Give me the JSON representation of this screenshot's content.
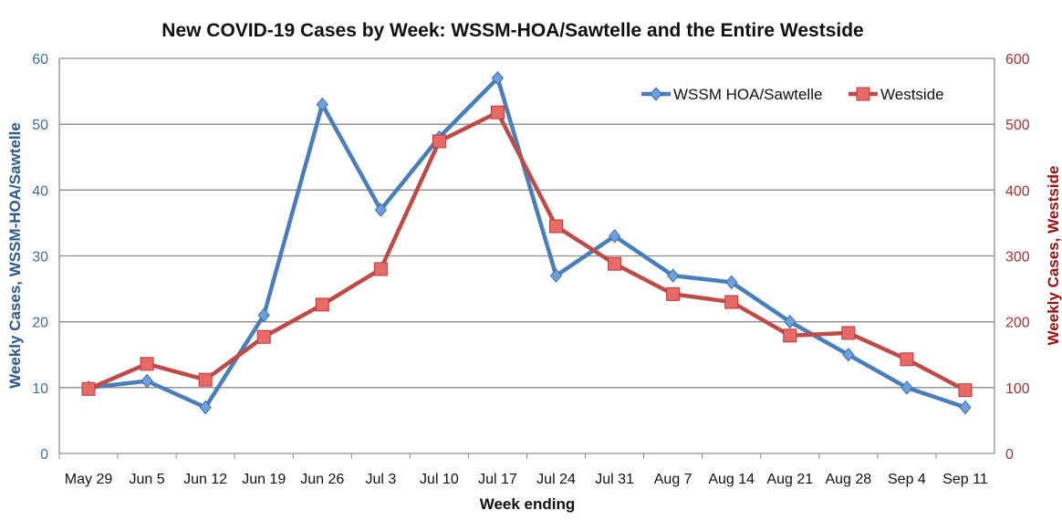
{
  "chart_data": {
    "type": "line",
    "title": "New COVID-19 Cases by Week:  WSSM-HOA/Sawtelle and the Entire Westside",
    "xlabel": "Week ending",
    "ylabel_left": "Weekly Cases, WSSM-HOA/Sawtelle",
    "ylabel_right": "Weekly Cases, Westside",
    "categories": [
      "May 29",
      "Jun 5",
      "Jun 12",
      "Jun 19",
      "Jun 26",
      "Jul 3",
      "Jul 10",
      "Jul 17",
      "Jul 24",
      "Jul 31",
      "Aug 7",
      "Aug 14",
      "Aug 21",
      "Aug 28",
      "Sep 4",
      "Sep 11"
    ],
    "ylim_left": [
      0,
      60
    ],
    "yticks_left": [
      0,
      10,
      20,
      30,
      40,
      50,
      60
    ],
    "ylim_right": [
      0,
      600
    ],
    "yticks_right": [
      0,
      100,
      200,
      300,
      400,
      500,
      600
    ],
    "grid": true,
    "legend_position": "top-right",
    "series": [
      {
        "name": "WSSM HOA/Sawtelle",
        "axis": "left",
        "color": "#4a7ebb",
        "marker": "diamond",
        "values": [
          10,
          11,
          7,
          21,
          53,
          37,
          48,
          57,
          27,
          33,
          27,
          26,
          20,
          15,
          10,
          7
        ]
      },
      {
        "name": "Westside",
        "axis": "right",
        "color": "#be4b48",
        "marker": "square",
        "values": [
          98,
          136,
          112,
          177,
          226,
          280,
          474,
          518,
          345,
          288,
          242,
          230,
          179,
          183,
          143,
          96
        ]
      }
    ],
    "colors": {
      "left_axis_text": "#3f6e9e",
      "right_axis_text": "#a33431",
      "right_axis_label": "#a01010",
      "left_axis_label": "#2c5a8a"
    }
  }
}
